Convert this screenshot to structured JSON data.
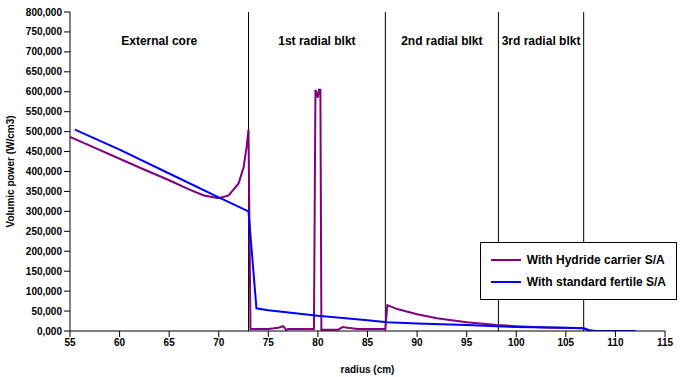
{
  "chart_data": {
    "type": "line",
    "x_label": "radius (cm)",
    "y_label": "Volumic power (W/cm3)",
    "xlim": [
      55,
      115
    ],
    "xticks": [
      55,
      60,
      65,
      70,
      75,
      80,
      85,
      90,
      95,
      100,
      105,
      110,
      115
    ],
    "ylim": [
      0,
      800000
    ],
    "yticks": [
      {
        "value": 0,
        "label": "0,000"
      },
      {
        "value": 50000,
        "label": "50,000"
      },
      {
        "value": 100000,
        "label": "100,000"
      },
      {
        "value": 150000,
        "label": "150,000"
      },
      {
        "value": 200000,
        "label": "200,000"
      },
      {
        "value": 250000,
        "label": "250,000"
      },
      {
        "value": 300000,
        "label": "300,000"
      },
      {
        "value": 350000,
        "label": "350,000"
      },
      {
        "value": 400000,
        "label": "400,000"
      },
      {
        "value": 450000,
        "label": "450,000"
      },
      {
        "value": 500000,
        "label": "500,000"
      },
      {
        "value": 550000,
        "label": "550,000"
      },
      {
        "value": 600000,
        "label": "600,000"
      },
      {
        "value": 650000,
        "label": "650,000"
      },
      {
        "value": 700000,
        "label": "700,000"
      },
      {
        "value": 750000,
        "label": "750,000"
      },
      {
        "value": 800000,
        "label": "800,000"
      }
    ],
    "grid": false,
    "legend": "lower right",
    "regions": [
      {
        "label": "External core",
        "from": 55,
        "to": 73
      },
      {
        "label": "1st radial blkt",
        "from": 73,
        "to": 86.8
      },
      {
        "label": "2nd radial blkt",
        "from": 86.8,
        "to": 98.2
      },
      {
        "label": "3rd radial blkt",
        "from": 98.2,
        "to": 106.8
      }
    ],
    "series": [
      {
        "name": "With Hydride carrier S/A",
        "color": "#800080",
        "x": [
          55,
          57,
          60,
          62,
          65,
          67,
          68.5,
          70,
          71,
          72,
          72.5,
          72.8,
          73,
          73.2,
          75,
          76,
          76.5,
          76.8,
          77,
          79.6,
          79.75,
          80,
          80.1,
          80.25,
          80.35,
          82,
          82.5,
          83,
          84,
          86.8,
          87,
          88,
          90,
          92,
          95,
          98,
          100,
          103,
          106.8,
          107.3,
          108,
          112
        ],
        "values": [
          487000,
          465000,
          432000,
          410000,
          378000,
          355000,
          340000,
          333000,
          340000,
          370000,
          410000,
          460000,
          505000,
          5000,
          5000,
          8000,
          12000,
          3000,
          5000,
          5000,
          605000,
          585000,
          605000,
          605000,
          3000,
          3000,
          10000,
          8000,
          5000,
          5000,
          65000,
          55000,
          42000,
          32000,
          22000,
          15000,
          12000,
          9000,
          7000,
          1000,
          0,
          0
        ]
      },
      {
        "name": "With standard fertile S/A",
        "color": "#0000ff",
        "x": [
          55.5,
          60,
          65,
          70,
          73,
          73.8,
          75,
          80,
          85,
          87,
          90,
          95,
          98,
          100,
          105,
          106.8,
          107.5,
          108,
          112
        ],
        "values": [
          505000,
          455000,
          395000,
          335000,
          300000,
          57000,
          52000,
          38000,
          27000,
          22000,
          19000,
          15000,
          12000,
          10000,
          8000,
          7000,
          1000,
          0,
          0
        ]
      }
    ]
  }
}
